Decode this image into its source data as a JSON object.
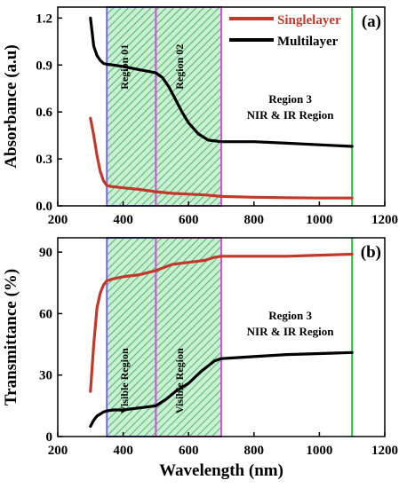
{
  "chart_data": [
    {
      "panel": "a",
      "type": "line",
      "panel_label": "(a)",
      "xlabel": "",
      "ylabel": "Absorbance (a.u)",
      "xlim": [
        200,
        1200
      ],
      "ylim": [
        0,
        1.27
      ],
      "xticks": [
        "200",
        "400",
        "600",
        "800",
        "1000",
        "1200"
      ],
      "yticks": [
        "0.0",
        "0.3",
        "0.6",
        "0.9",
        "1.2"
      ],
      "grid": false,
      "legend": {
        "position": "top-right",
        "entries": [
          "Singlelayer",
          "Multilayer"
        ]
      },
      "regions": [
        {
          "x": [
            350,
            500
          ],
          "pattern": "hatched",
          "label": "Region 01"
        },
        {
          "x": [
            500,
            700
          ],
          "pattern": "hatched",
          "label": "Region 02"
        }
      ],
      "region_text": [
        "Region 3",
        "NIR & IR Region"
      ],
      "vlines": [
        1100
      ],
      "series": [
        {
          "name": "Singlelayer",
          "color": "#c0392b",
          "x": [
            300,
            310,
            320,
            330,
            340,
            350,
            360,
            380,
            400,
            450,
            500,
            550,
            600,
            650,
            700,
            800,
            900,
            1000,
            1100
          ],
          "y": [
            0.56,
            0.45,
            0.32,
            0.22,
            0.16,
            0.13,
            0.125,
            0.12,
            0.115,
            0.105,
            0.09,
            0.08,
            0.075,
            0.07,
            0.06,
            0.055,
            0.052,
            0.05,
            0.05
          ]
        },
        {
          "name": "Multilayer",
          "color": "#000000",
          "x": [
            300,
            310,
            320,
            330,
            340,
            350,
            370,
            400,
            450,
            500,
            520,
            540,
            560,
            580,
            600,
            630,
            660,
            700,
            800,
            900,
            1000,
            1100
          ],
          "y": [
            1.2,
            1.02,
            0.96,
            0.93,
            0.91,
            0.905,
            0.9,
            0.89,
            0.87,
            0.85,
            0.82,
            0.76,
            0.68,
            0.6,
            0.53,
            0.46,
            0.42,
            0.41,
            0.41,
            0.4,
            0.39,
            0.38
          ]
        }
      ]
    },
    {
      "panel": "b",
      "type": "line",
      "panel_label": "(b)",
      "xlabel": "Wavelength (nm)",
      "ylabel": "Transmittance (%)",
      "xlim": [
        200,
        1200
      ],
      "ylim": [
        0,
        97
      ],
      "xticks": [
        "200",
        "400",
        "600",
        "800",
        "1000",
        "1200"
      ],
      "yticks": [
        "0",
        "30",
        "60",
        "90"
      ],
      "grid": false,
      "regions": [
        {
          "x": [
            350,
            500
          ],
          "pattern": "hatched",
          "label": "Visible Region"
        },
        {
          "x": [
            500,
            700
          ],
          "pattern": "hatched",
          "label": "Visible Region"
        }
      ],
      "region_text": [
        "Region 3",
        "NIR & IR Region"
      ],
      "vlines": [
        1100
      ],
      "series": [
        {
          "name": "Singlelayer",
          "color": "#c0392b",
          "x": [
            300,
            310,
            320,
            330,
            340,
            350,
            370,
            400,
            450,
            500,
            550,
            600,
            650,
            680,
            700,
            800,
            900,
            1000,
            1100
          ],
          "y": [
            22,
            45,
            63,
            70,
            74,
            76,
            77,
            78,
            79,
            81,
            84,
            85,
            86,
            87.5,
            88,
            88,
            88,
            88.5,
            89
          ]
        },
        {
          "name": "Multilayer",
          "color": "#000000",
          "x": [
            300,
            310,
            320,
            330,
            340,
            350,
            370,
            400,
            450,
            500,
            530,
            560,
            600,
            640,
            680,
            700,
            800,
            900,
            1000,
            1100
          ],
          "y": [
            5,
            8,
            10,
            11,
            12,
            12.5,
            13,
            13,
            14,
            15,
            18,
            22,
            26,
            32,
            37,
            38,
            39,
            40,
            40.5,
            41
          ]
        }
      ]
    }
  ]
}
